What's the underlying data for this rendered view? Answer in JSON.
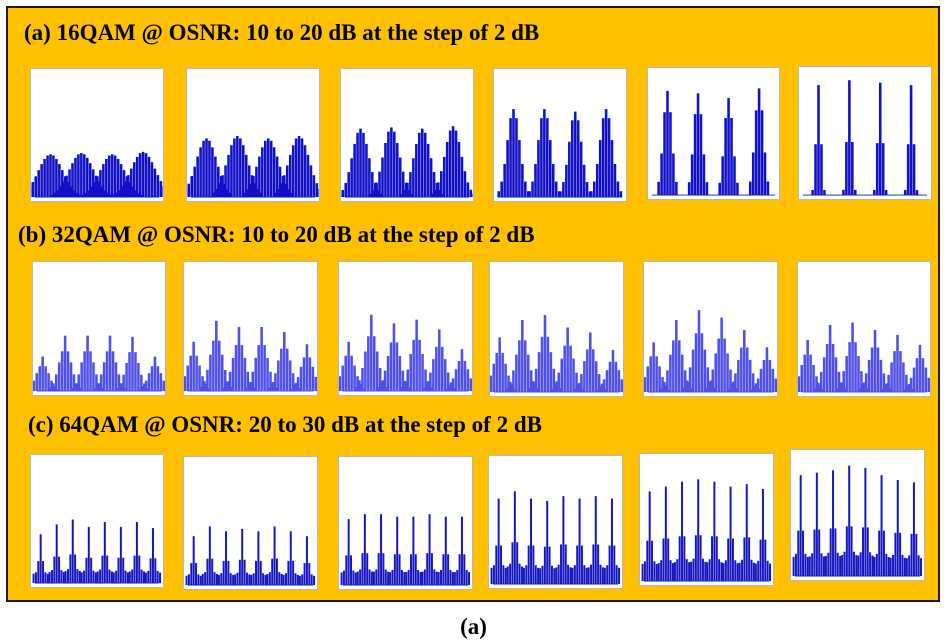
{
  "figure_caption": "(a)",
  "colors": {
    "panel_background": "#ffc000",
    "bar_16qam": "#1010c8",
    "bar_32qam": "#5050e8",
    "bar_64qam": "#1414c0"
  },
  "chart_data": [
    {
      "type": "bar",
      "title": "(a) 16QAM @ OSNR: 10 to 20 dB at the step of 2 dB",
      "modulation": "16QAM",
      "osnr_db": [
        10,
        12,
        14,
        16,
        18,
        20
      ],
      "peak_count": 4,
      "panels": [
        {
          "osnr_db": 10,
          "peak_heights": [
            0.35,
            0.36,
            0.35,
            0.37
          ]
        },
        {
          "osnr_db": 12,
          "peak_heights": [
            0.48,
            0.5,
            0.48,
            0.5
          ]
        },
        {
          "osnr_db": 14,
          "peak_heights": [
            0.56,
            0.57,
            0.56,
            0.58
          ]
        },
        {
          "osnr_db": 16,
          "peak_heights": [
            0.72,
            0.72,
            0.7,
            0.72
          ]
        },
        {
          "osnr_db": 18,
          "peak_heights": [
            0.86,
            0.84,
            0.8,
            0.88
          ]
        },
        {
          "osnr_db": 20,
          "peak_heights": [
            0.9,
            0.94,
            0.92,
            0.9
          ]
        }
      ]
    },
    {
      "type": "bar",
      "title": "(b) 32QAM @ OSNR: 10 to 20 dB at the step of 2 dB",
      "modulation": "32QAM",
      "osnr_db": [
        10,
        12,
        14,
        16,
        18,
        20
      ],
      "peak_count": 6,
      "panels": [
        {
          "osnr_db": 10,
          "peak_heights": [
            0.28,
            0.45,
            0.45,
            0.45,
            0.44,
            0.28
          ]
        },
        {
          "osnr_db": 12,
          "peak_heights": [
            0.4,
            0.57,
            0.52,
            0.52,
            0.48,
            0.38
          ]
        },
        {
          "osnr_db": 14,
          "peak_heights": [
            0.4,
            0.62,
            0.55,
            0.58,
            0.5,
            0.34
          ]
        },
        {
          "osnr_db": 16,
          "peak_heights": [
            0.44,
            0.58,
            0.62,
            0.52,
            0.48,
            0.34
          ]
        },
        {
          "osnr_db": 18,
          "peak_heights": [
            0.4,
            0.58,
            0.66,
            0.6,
            0.5,
            0.36
          ]
        },
        {
          "osnr_db": 20,
          "peak_heights": [
            0.42,
            0.54,
            0.56,
            0.5,
            0.46,
            0.38
          ]
        }
      ]
    },
    {
      "type": "bar",
      "title": "(c) 64QAM @ OSNR: 20 to 30 dB at the step of 2 dB",
      "modulation": "64QAM",
      "osnr_db": [
        20,
        22,
        24,
        26,
        28,
        30
      ],
      "peak_count": 8,
      "panels": [
        {
          "osnr_db": 20,
          "peak_heights": [
            0.4,
            0.48,
            0.52,
            0.46,
            0.5,
            0.46,
            0.5,
            0.45
          ]
        },
        {
          "osnr_db": 22,
          "peak_heights": [
            0.4,
            0.48,
            0.44,
            0.46,
            0.44,
            0.48,
            0.44,
            0.4
          ]
        },
        {
          "osnr_db": 24,
          "peak_heights": [
            0.54,
            0.58,
            0.58,
            0.56,
            0.56,
            0.58,
            0.56,
            0.56
          ]
        },
        {
          "osnr_db": 26,
          "peak_heights": [
            0.7,
            0.76,
            0.7,
            0.68,
            0.72,
            0.7,
            0.72,
            0.7
          ]
        },
        {
          "osnr_db": 28,
          "peak_heights": [
            0.74,
            0.78,
            0.82,
            0.84,
            0.82,
            0.78,
            0.8,
            0.76
          ]
        },
        {
          "osnr_db": 30,
          "peak_heights": [
            0.84,
            0.86,
            0.88,
            0.92,
            0.9,
            0.84,
            0.8,
            0.78
          ]
        }
      ]
    }
  ]
}
